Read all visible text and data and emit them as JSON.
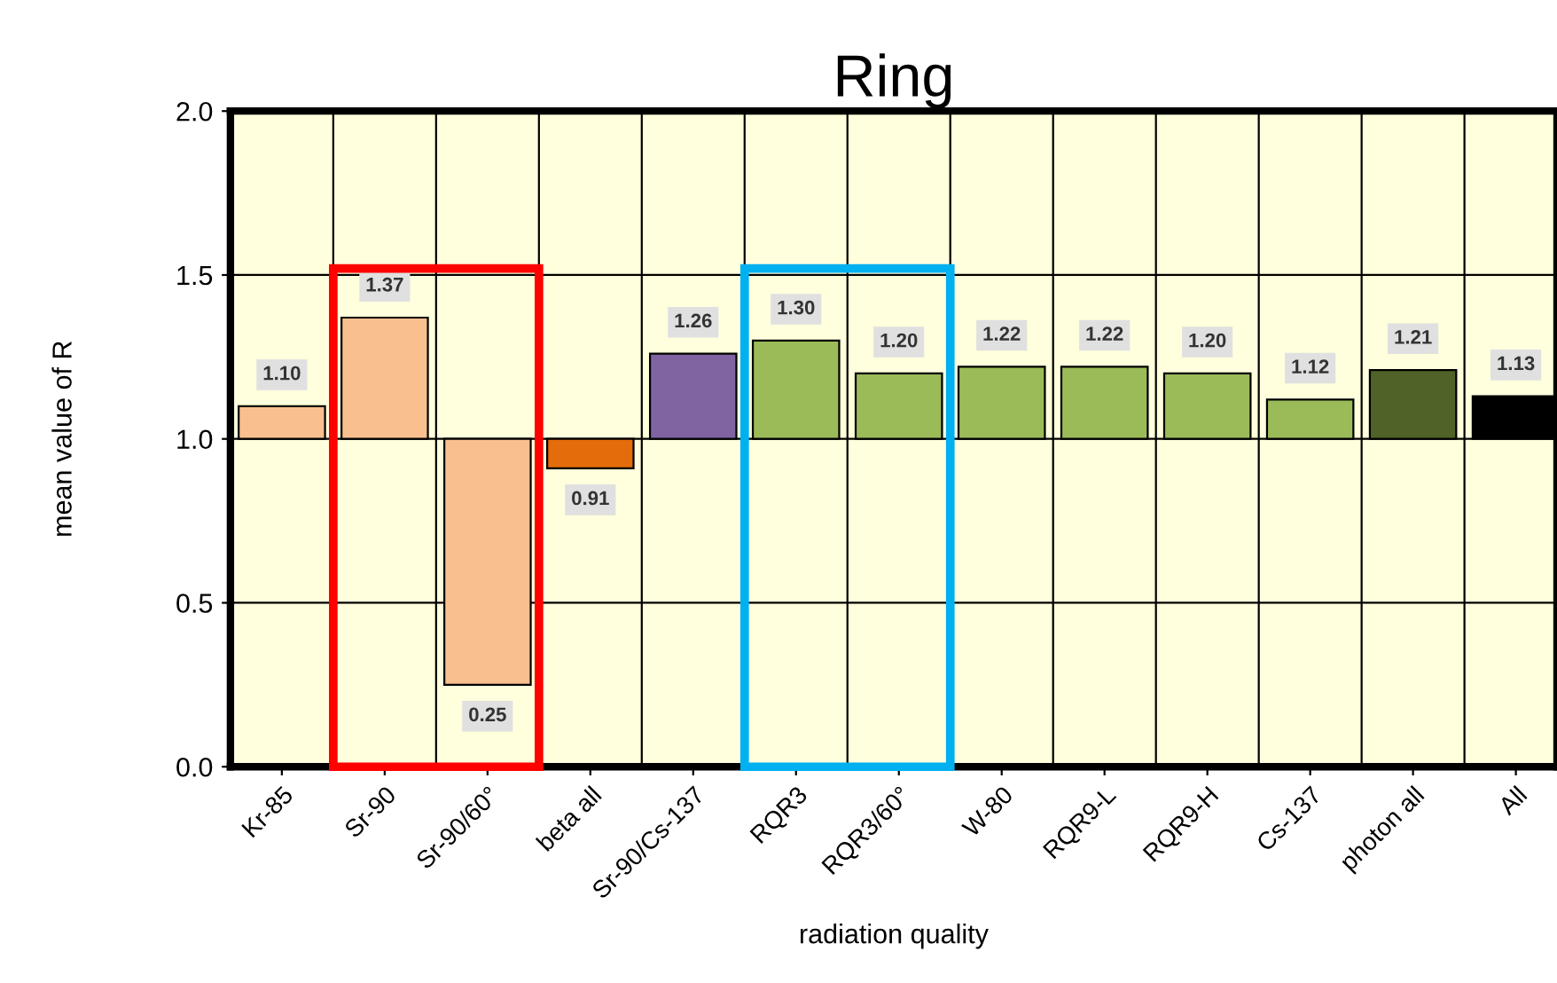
{
  "chart_data": {
    "type": "bar",
    "title": "Ring",
    "xlabel": "radiation quality",
    "ylabel": "mean value of R",
    "categories": [
      "Kr-85",
      "Sr-90",
      "Sr-90/60°",
      "beta all",
      "Sr-90/Cs-137",
      "RQR3",
      "RQR3/60°",
      "W-80",
      "RQR9-L",
      "RQR9-H",
      "Cs-137",
      "photon all",
      "All"
    ],
    "base": [
      1.0,
      1.0,
      1.0,
      1.0,
      1.0,
      1.0,
      1.0,
      1.0,
      1.0,
      1.0,
      1.0,
      1.0,
      1.0
    ],
    "values": [
      0.1,
      0.37,
      -0.75,
      -0.09,
      0.26,
      0.3,
      0.2,
      0.22,
      0.22,
      0.2,
      0.12,
      0.21,
      0.13
    ],
    "value_labels": [
      "1.10",
      "1.37",
      "0.25",
      "0.91",
      "1.26",
      "1.30",
      "1.20",
      "1.22",
      "1.22",
      "1.20",
      "1.12",
      "1.21",
      "1.13"
    ],
    "colors": [
      "#f9bf8f",
      "#f9bf8f",
      "#f9bf8f",
      "#e46c0a",
      "#8064a2",
      "#9bbb59",
      "#9bbb59",
      "#9bbb59",
      "#9bbb59",
      "#9bbb59",
      "#9bbb59",
      "#4f6228",
      "#000000"
    ],
    "ylim": [
      0,
      2.0
    ],
    "yticks": [
      {
        "value": 0,
        "label": "0.0"
      },
      {
        "value": 0.5,
        "label": "0.5"
      },
      {
        "value": 1.0,
        "label": "1.0"
      },
      {
        "value": 1.5,
        "label": "1.5"
      },
      {
        "value": 2.0,
        "label": "2.0"
      }
    ],
    "grid": true
  }
}
